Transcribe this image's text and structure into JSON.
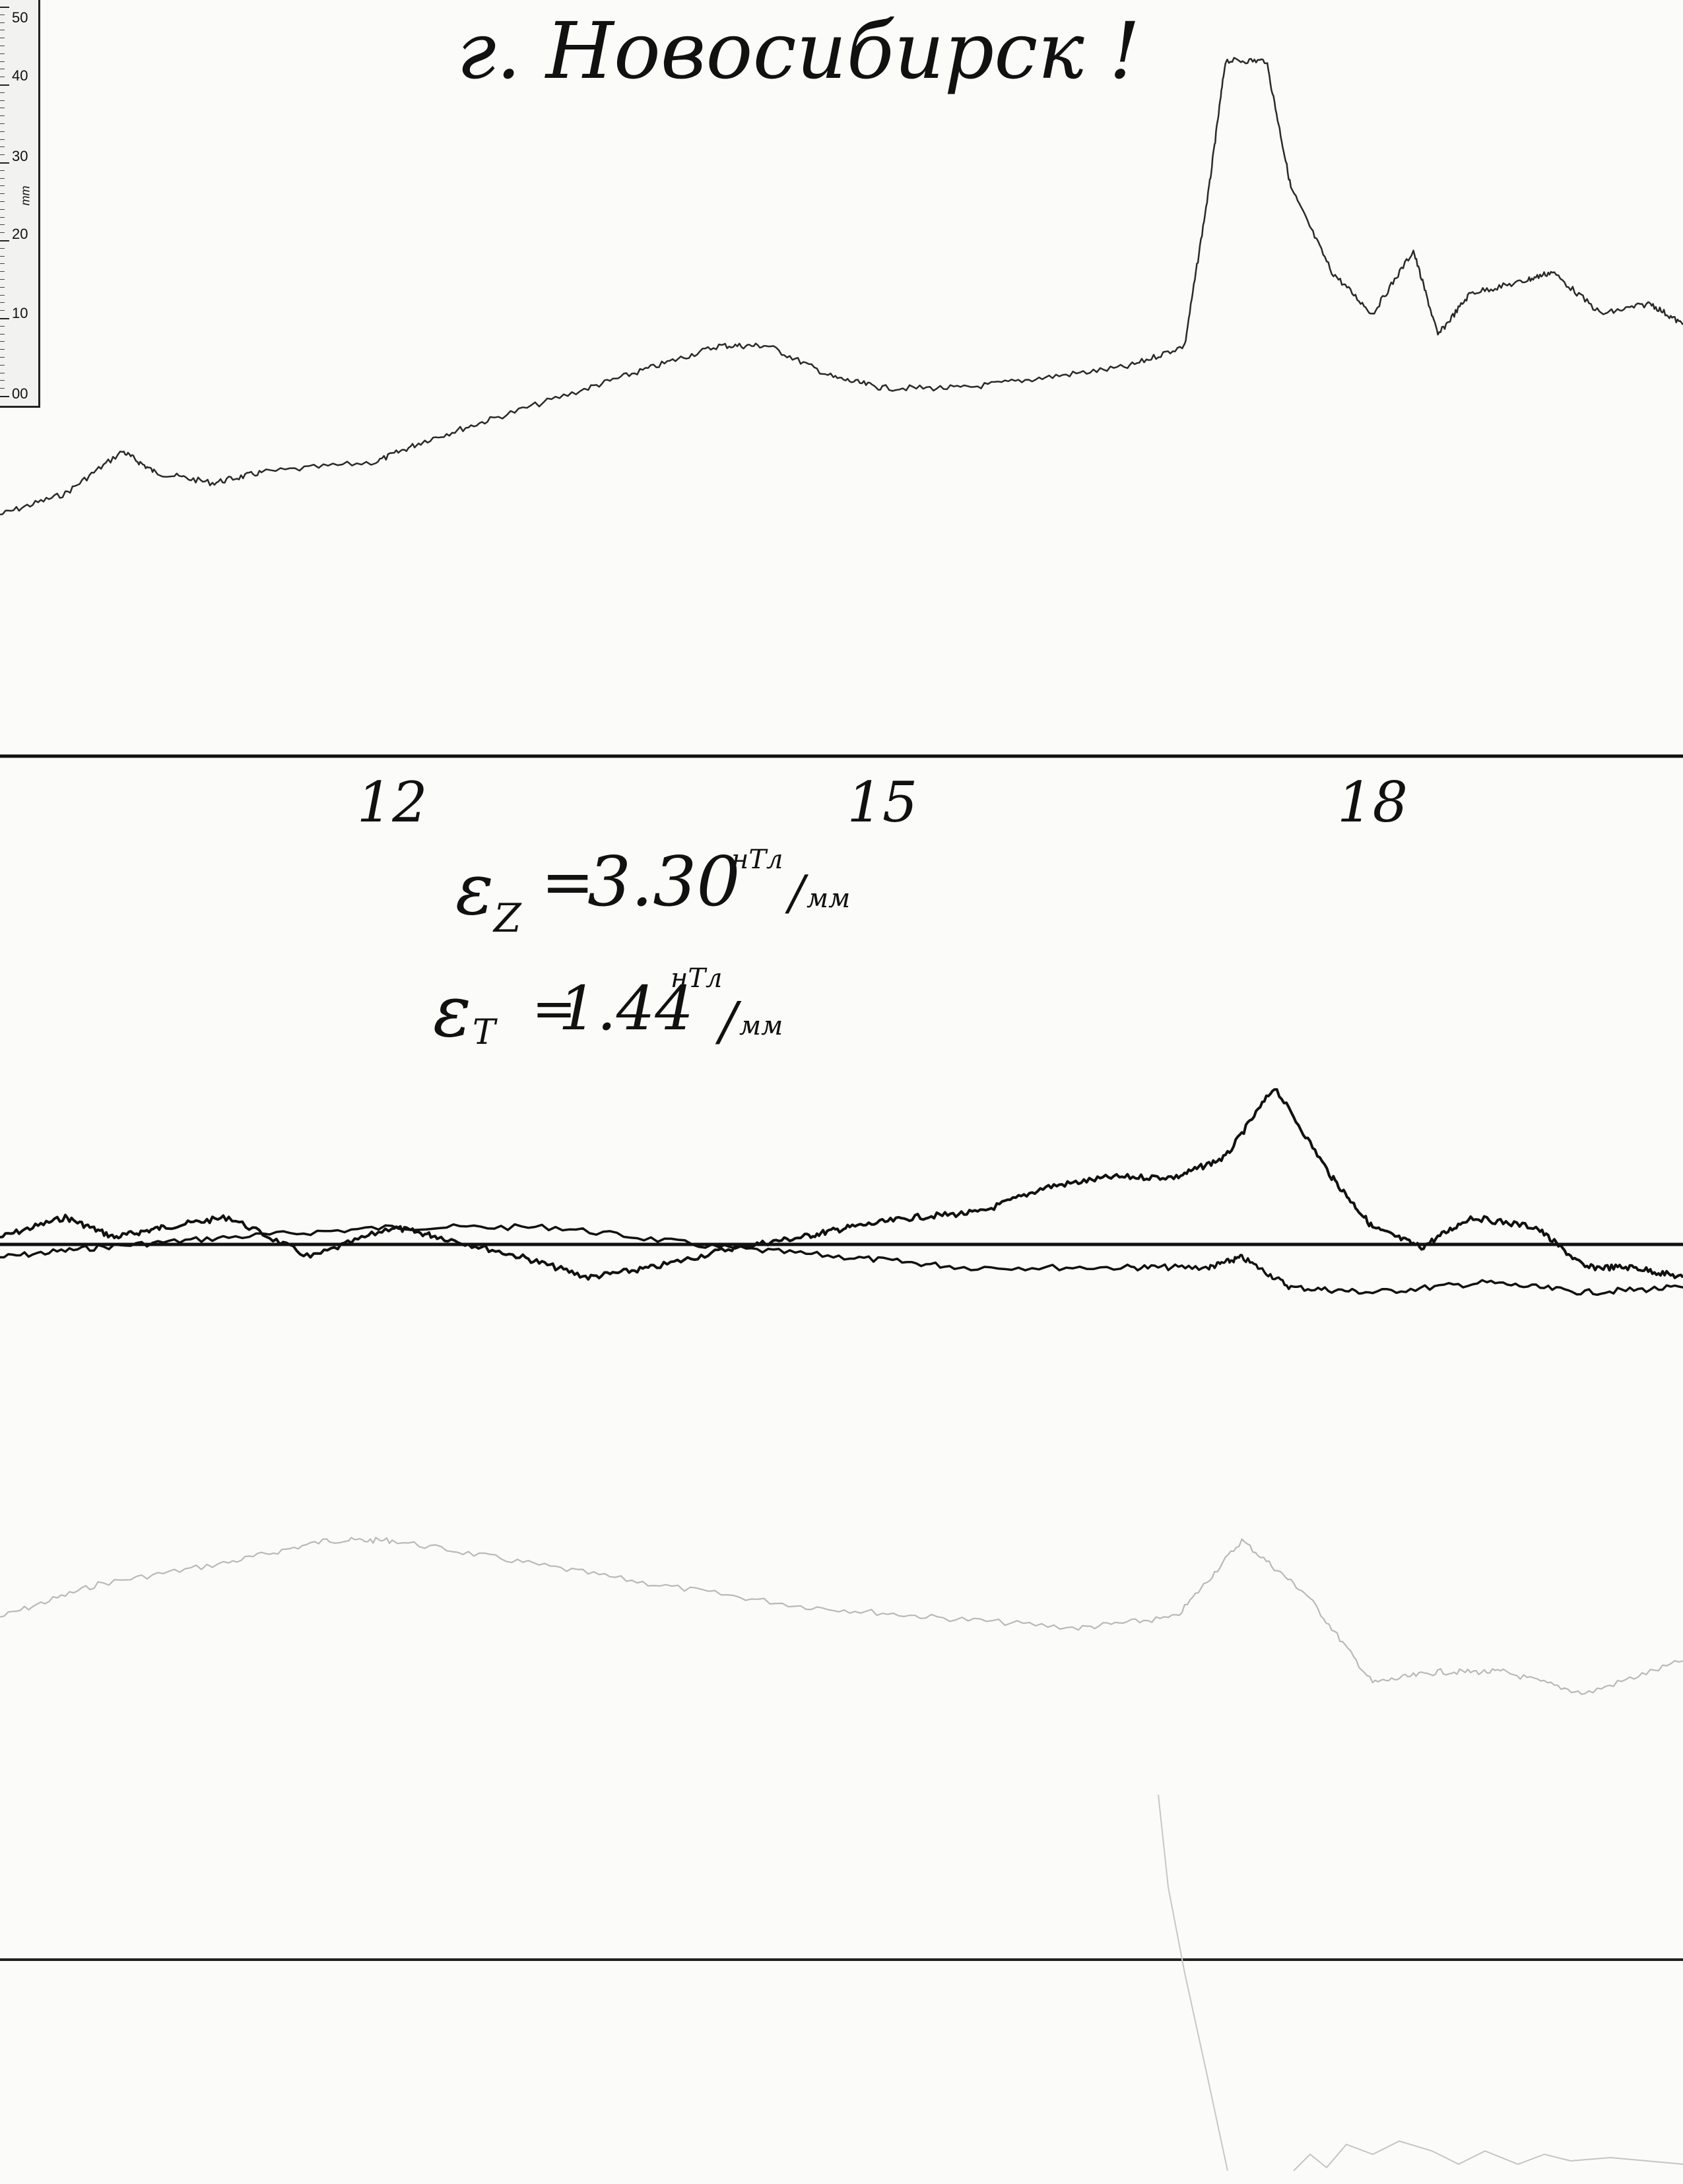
{
  "title": "г. Новосибирск !",
  "ruler": {
    "unit": "mm",
    "labels": [
      "50",
      "40",
      "30",
      "20",
      "10",
      "00"
    ]
  },
  "calibration": {
    "z": {
      "symbol": "ε",
      "subscript": "Z",
      "value": "3.30",
      "unit_top": "нТл",
      "unit_bottom": "мм"
    },
    "t": {
      "symbol": "ε",
      "subscript": "T",
      "value": "1.44",
      "unit_top": "нТл",
      "unit_bottom": "мм"
    }
  },
  "chart_data": {
    "type": "line",
    "title": "г. Новосибирск !",
    "xlabel": "",
    "ylabel": "",
    "x_tick_labels": [
      "12",
      "15",
      "18"
    ],
    "x_ticks_hours": [
      12,
      15,
      18
    ],
    "xlim": [
      9.6,
      19.9
    ],
    "ylim": [
      0,
      50
    ],
    "grid": false,
    "legend": "none",
    "series": [
      {
        "id": "upper",
        "color": "#2a2a2a",
        "points": [
          [
            9.6,
            5
          ],
          [
            10.0,
            7
          ],
          [
            10.35,
            11
          ],
          [
            10.55,
            9
          ],
          [
            10.9,
            8
          ],
          [
            11.2,
            9
          ],
          [
            11.9,
            10
          ],
          [
            12.2,
            12
          ],
          [
            12.6,
            14
          ],
          [
            13.2,
            17
          ],
          [
            13.6,
            19
          ],
          [
            14.0,
            21
          ],
          [
            14.3,
            21
          ],
          [
            14.7,
            18
          ],
          [
            15.0,
            17
          ],
          [
            15.5,
            17
          ],
          [
            16.0,
            18
          ],
          [
            16.5,
            19
          ],
          [
            16.85,
            21
          ],
          [
            17.0,
            36
          ],
          [
            17.1,
            48
          ],
          [
            17.35,
            48
          ],
          [
            17.5,
            36
          ],
          [
            17.75,
            28
          ],
          [
            18.0,
            24
          ],
          [
            18.25,
            30
          ],
          [
            18.4,
            22
          ],
          [
            18.6,
            26
          ],
          [
            18.9,
            27
          ],
          [
            19.1,
            28
          ],
          [
            19.4,
            24
          ],
          [
            19.7,
            25
          ],
          [
            19.9,
            23
          ]
        ]
      },
      {
        "id": "middle-bold-1",
        "color": "#111111",
        "points": [
          [
            9.6,
            24
          ],
          [
            10.0,
            26
          ],
          [
            10.3,
            24
          ],
          [
            10.6,
            25
          ],
          [
            11.0,
            26
          ],
          [
            11.5,
            22
          ],
          [
            12.0,
            25
          ],
          [
            12.3,
            24
          ],
          [
            12.8,
            22
          ],
          [
            13.2,
            20
          ],
          [
            13.6,
            21
          ],
          [
            14.1,
            23
          ],
          [
            14.5,
            24
          ],
          [
            14.8,
            25
          ],
          [
            15.2,
            26
          ],
          [
            15.6,
            26.5
          ],
          [
            16.0,
            29
          ],
          [
            16.4,
            30
          ],
          [
            16.8,
            30
          ],
          [
            17.1,
            32
          ],
          [
            17.4,
            39
          ],
          [
            17.75,
            30
          ],
          [
            18.0,
            25
          ],
          [
            18.3,
            23
          ],
          [
            18.6,
            26
          ],
          [
            19.0,
            25
          ],
          [
            19.3,
            21
          ],
          [
            19.6,
            21
          ],
          [
            19.9,
            20
          ]
        ]
      },
      {
        "id": "middle-bold-2",
        "color": "#111111",
        "points": [
          [
            9.6,
            22
          ],
          [
            10.2,
            23
          ],
          [
            11.0,
            24
          ],
          [
            12.0,
            25
          ],
          [
            13.0,
            25
          ],
          [
            14.0,
            23
          ],
          [
            14.8,
            22
          ],
          [
            15.5,
            21
          ],
          [
            16.5,
            21
          ],
          [
            17.0,
            21
          ],
          [
            17.2,
            22
          ],
          [
            17.5,
            19
          ],
          [
            18.0,
            18.5
          ],
          [
            18.7,
            19.5
          ],
          [
            19.3,
            18.5
          ],
          [
            19.9,
            19
          ]
        ]
      },
      {
        "id": "lower-faint",
        "color": "#b9b9b9",
        "points": [
          [
            9.6,
            12
          ],
          [
            10.2,
            15
          ],
          [
            11.0,
            17
          ],
          [
            11.6,
            19
          ],
          [
            12.0,
            19
          ],
          [
            12.8,
            17
          ],
          [
            13.6,
            15
          ],
          [
            14.5,
            13
          ],
          [
            15.3,
            12
          ],
          [
            16.2,
            11
          ],
          [
            16.8,
            12
          ],
          [
            17.2,
            19
          ],
          [
            17.6,
            14
          ],
          [
            18.0,
            6
          ],
          [
            18.4,
            7
          ],
          [
            18.8,
            7
          ],
          [
            19.3,
            5
          ],
          [
            19.9,
            8
          ]
        ]
      }
    ]
  }
}
